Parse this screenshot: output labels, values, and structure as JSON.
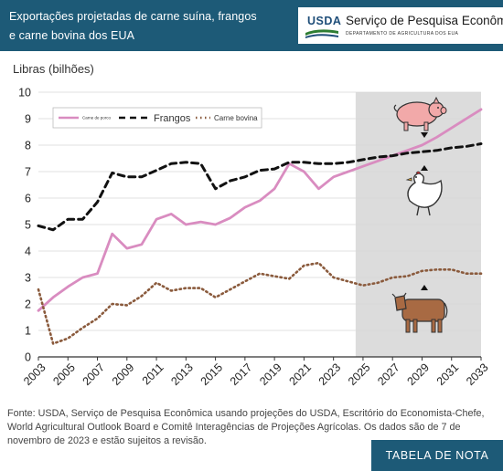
{
  "header": {
    "title_line1": "Exportações projetadas de carne suína, frangos",
    "title_line2": "e carne bovina dos EUA",
    "usda_label": "USDA",
    "agency_name": "Serviço de Pesquisa Econômica",
    "department": "DEPARTAMENTO DE AGRICULTURA DOS EUA"
  },
  "chart_data": {
    "type": "line",
    "title": "",
    "xlabel": "",
    "ylabel": "Libras (bilhões)",
    "xlim": [
      2003,
      2033
    ],
    "ylim": [
      0,
      10
    ],
    "yticks": [
      0,
      1,
      2,
      3,
      4,
      5,
      6,
      7,
      8,
      9,
      10
    ],
    "xticks": [
      2003,
      2005,
      2007,
      2009,
      2011,
      2013,
      2015,
      2017,
      2019,
      2021,
      2023,
      2025,
      2027,
      2029,
      2031,
      2033
    ],
    "projection_start": 2024.5,
    "grid": true,
    "legend_position": "top-left",
    "x": [
      2003,
      2004,
      2005,
      2006,
      2007,
      2008,
      2009,
      2010,
      2011,
      2012,
      2013,
      2014,
      2015,
      2016,
      2017,
      2018,
      2019,
      2020,
      2021,
      2022,
      2023,
      2024,
      2025,
      2026,
      2027,
      2028,
      2029,
      2030,
      2031,
      2032,
      2033
    ],
    "series": [
      {
        "name": "Carne de porco",
        "color": "#d98cc0",
        "style": "solid",
        "values": [
          1.75,
          2.25,
          2.65,
          3.0,
          3.15,
          4.65,
          4.1,
          4.25,
          5.2,
          5.4,
          5.0,
          5.1,
          5.0,
          5.25,
          5.65,
          5.9,
          6.35,
          7.3,
          7.0,
          6.35,
          6.8,
          7.0,
          7.2,
          7.4,
          7.6,
          7.8,
          8.0,
          8.3,
          8.65,
          9.0,
          9.35
        ]
      },
      {
        "name": "Frangos",
        "color": "#111111",
        "style": "dashed",
        "values": [
          4.95,
          4.8,
          5.2,
          5.2,
          5.85,
          6.95,
          6.8,
          6.8,
          7.05,
          7.3,
          7.35,
          7.3,
          6.35,
          6.65,
          6.8,
          7.05,
          7.1,
          7.35,
          7.35,
          7.3,
          7.3,
          7.35,
          7.45,
          7.55,
          7.6,
          7.7,
          7.75,
          7.8,
          7.9,
          7.95,
          8.05
        ]
      },
      {
        "name": "Carne bovina",
        "color": "#8a5a3c",
        "style": "dotted",
        "values": [
          2.55,
          0.5,
          0.7,
          1.1,
          1.45,
          2.0,
          1.95,
          2.3,
          2.8,
          2.5,
          2.6,
          2.6,
          2.25,
          2.55,
          2.85,
          3.15,
          3.05,
          2.95,
          3.45,
          3.55,
          3.0,
          2.85,
          2.7,
          2.8,
          3.0,
          3.05,
          3.25,
          3.3,
          3.3,
          3.15,
          3.15
        ]
      }
    ]
  },
  "source_text": "Fonte: USDA, Serviço de Pesquisa Econômica usando projeções do USDA, Escritório do Economista-Chefe, World Agricultural Outlook Board e Comitê Interagências de Projeções Agrícolas. Os dados são de 7 de novembro de 2023 e estão sujeitos a revisão.",
  "note_button": "TABELA DE NOTA",
  "icons": [
    "pig-icon",
    "chicken-icon",
    "cow-icon"
  ],
  "colors": {
    "header": "#1d5a77",
    "projection_shade": "#dcdcdc"
  }
}
